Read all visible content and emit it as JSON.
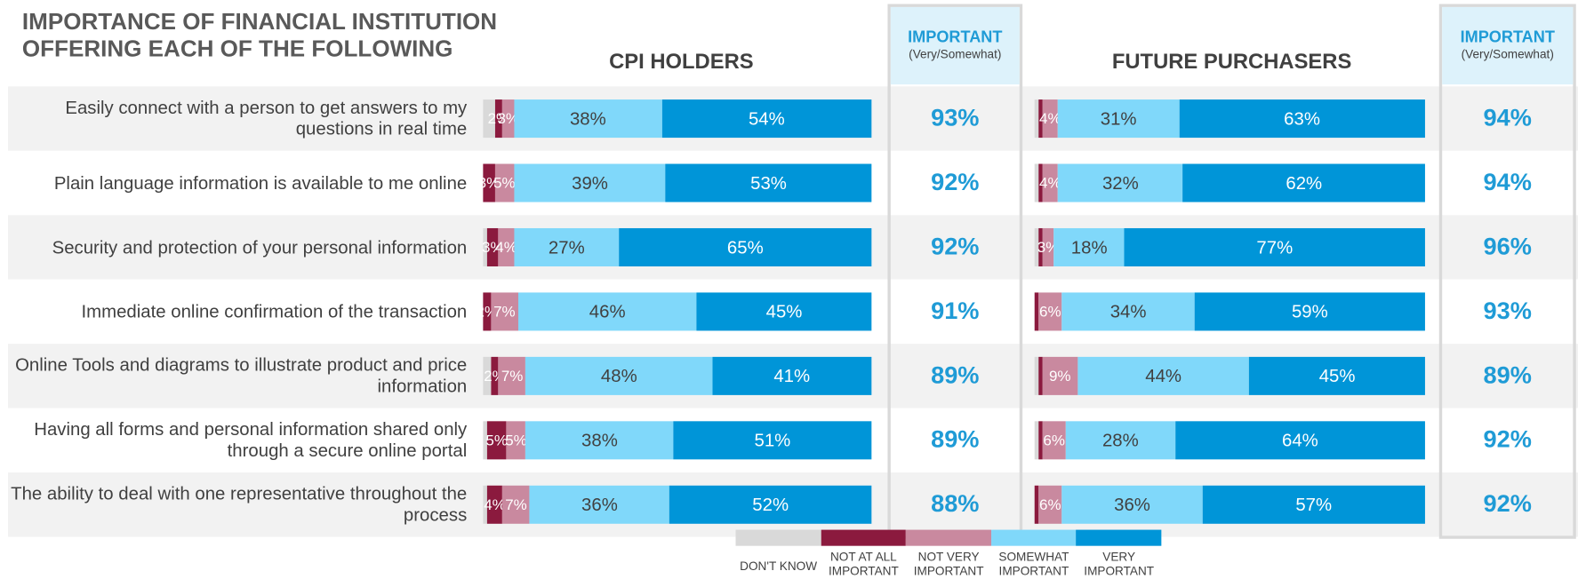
{
  "chart_data": {
    "type": "bar",
    "orientation": "horizontal",
    "stacked": true,
    "title": "IMPORTANCE OF FINANCIAL INSTITUTION OFFERING EACH OF THE FOLLOWING",
    "categories": [
      "Easily connect with a person to get answers to my questions in real time",
      "Plain language information is available to me online",
      "Security and protection of your personal information",
      "Immediate online confirmation of the transaction",
      "Online Tools and diagrams to illustrate product and price information",
      "Having all forms and personal information shared only through a secure online portal",
      "The ability to deal with one representative throughout the process"
    ],
    "xlim": [
      0,
      100
    ],
    "legend": [
      {
        "name": "DON'T KNOW",
        "color": "#d9d9d9"
      },
      {
        "name": "NOT AT ALL IMPORTANT",
        "color": "#8b1a3e"
      },
      {
        "name": "NOT VERY IMPORTANT",
        "color": "#c9899f"
      },
      {
        "name": "SOMEWHAT IMPORTANT",
        "color": "#80d8fa"
      },
      {
        "name": "VERY IMPORTANT",
        "color": "#0095d8"
      }
    ],
    "panels": [
      {
        "title": "CPI HOLDERS",
        "series": [
          {
            "values": [
              3,
              0,
              1,
              0,
              2,
              1,
              1
            ],
            "value_labels": [
              null,
              null,
              null,
              null,
              null,
              null,
              null
            ]
          },
          {
            "values": [
              2,
              3,
              3,
              2,
              2,
              5,
              4
            ],
            "value_labels": [
              "2%",
              "3%",
              "3%",
              "2%",
              "2%",
              "5%",
              "4%"
            ]
          },
          {
            "values": [
              3,
              5,
              4,
              7,
              7,
              5,
              7
            ],
            "value_labels": [
              "3%",
              "5%",
              "4%",
              "7%",
              "7%",
              "5%",
              "7%"
            ]
          },
          {
            "values": [
              38,
              39,
              27,
              46,
              48,
              38,
              36
            ],
            "value_labels": [
              "38%",
              "39%",
              "27%",
              "46%",
              "48%",
              "38%",
              "36%"
            ]
          },
          {
            "values": [
              54,
              53,
              65,
              45,
              41,
              51,
              52
            ],
            "value_labels": [
              "54%",
              "53%",
              "65%",
              "45%",
              "41%",
              "51%",
              "52%"
            ]
          }
        ],
        "important": {
          "title": "IMPORTANT",
          "subtitle": "(Very/Somewhat)",
          "values": [
            93,
            92,
            92,
            91,
            89,
            89,
            88
          ],
          "value_labels": [
            "93%",
            "92%",
            "92%",
            "91%",
            "89%",
            "89%",
            "88%"
          ]
        }
      },
      {
        "title": "FUTURE PURCHASERS",
        "series": [
          {
            "values": [
              1,
              1,
              1,
              0,
              1,
              1,
              0
            ],
            "value_labels": [
              null,
              null,
              null,
              null,
              null,
              null,
              null
            ]
          },
          {
            "values": [
              1,
              1,
              1,
              1,
              1,
              1,
              1
            ],
            "value_labels": [
              null,
              null,
              null,
              null,
              null,
              null,
              null
            ]
          },
          {
            "values": [
              4,
              4,
              3,
              6,
              9,
              6,
              6
            ],
            "value_labels": [
              "4%",
              "4%",
              "3%",
              "6%",
              "9%",
              "6%",
              "6%"
            ]
          },
          {
            "values": [
              31,
              32,
              18,
              34,
              44,
              28,
              36
            ],
            "value_labels": [
              "31%",
              "32%",
              "18%",
              "34%",
              "44%",
              "28%",
              "36%"
            ]
          },
          {
            "values": [
              63,
              62,
              77,
              59,
              45,
              64,
              57
            ],
            "value_labels": [
              "63%",
              "62%",
              "77%",
              "59%",
              "45%",
              "64%",
              "57%"
            ]
          }
        ],
        "important": {
          "title": "IMPORTANT",
          "subtitle": "(Very/Somewhat)",
          "values": [
            94,
            94,
            96,
            93,
            89,
            92,
            92
          ],
          "value_labels": [
            "94%",
            "94%",
            "96%",
            "93%",
            "89%",
            "92%",
            "92%"
          ]
        }
      }
    ]
  }
}
